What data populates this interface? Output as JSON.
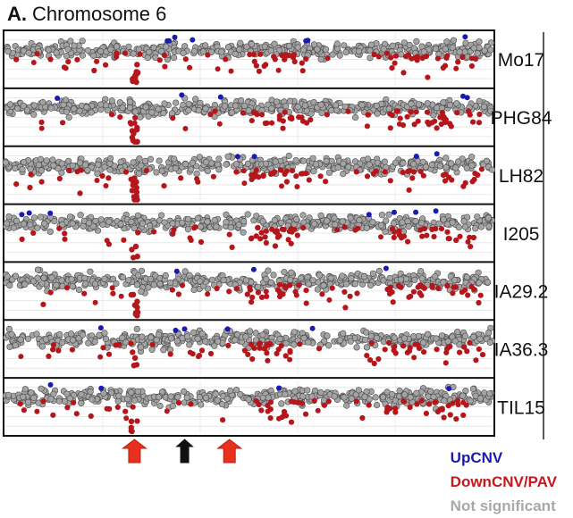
{
  "panel_letter": "A.",
  "panel_title": "Chromosome 6",
  "chart_data": {
    "type": "scatter",
    "title": "Chromosome 6",
    "xlabel": "",
    "ylabel": "",
    "grid": true,
    "legend_placement": "bottom-right",
    "categories": [
      "Mo17",
      "PHG84",
      "LH82",
      "I205",
      "IA29.2",
      "IA36.3",
      "TIL15"
    ],
    "legend": [
      {
        "name": "UpCNV",
        "color": "#1a1ab0"
      },
      {
        "name": "DownCNV/PAV",
        "color": "#c8171c"
      },
      {
        "name": "Not significant",
        "color": "#9a9a9a"
      }
    ],
    "point_colors": {
      "up": "#1a1ab0",
      "down": "#b5161b",
      "ns": "#a4a4a4",
      "ns_stroke": "#4a4a4a"
    },
    "x_range": [
      0,
      100
    ],
    "markers": [
      {
        "x": 26.5,
        "color": "#e8301c",
        "label": "red-arrow-1"
      },
      {
        "x": 36.8,
        "color": "#111111",
        "label": "black-arrow"
      },
      {
        "x": 46.0,
        "color": "#e8301c",
        "label": "red-arrow-2"
      }
    ],
    "deletion_cluster_x": 26.5
  }
}
